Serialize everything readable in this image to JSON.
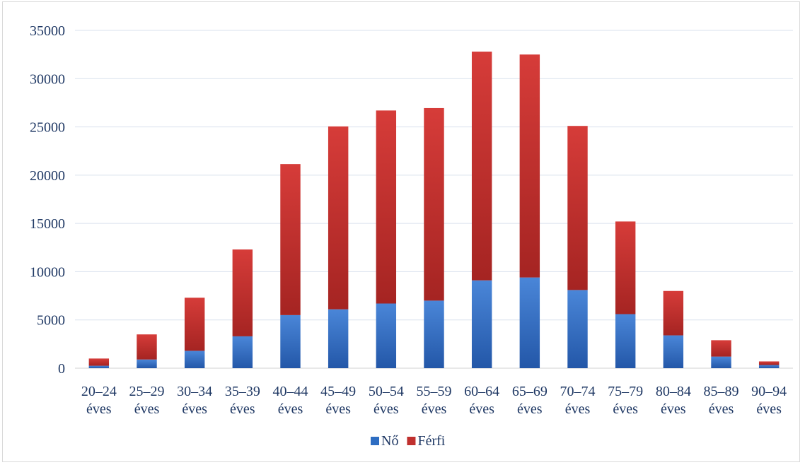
{
  "chart_data": {
    "type": "bar",
    "stacked": true,
    "title": "",
    "xlabel": "",
    "ylabel": "",
    "ylim": [
      0,
      35000
    ],
    "yticks": [
      0,
      5000,
      10000,
      15000,
      20000,
      25000,
      30000,
      35000
    ],
    "grid": true,
    "legend_position": "bottom",
    "categories": [
      [
        "20–24",
        "éves"
      ],
      [
        "25–29",
        "éves"
      ],
      [
        "30–34",
        "éves"
      ],
      [
        "35–39",
        "éves"
      ],
      [
        "40–44",
        "éves"
      ],
      [
        "45–49",
        "éves"
      ],
      [
        "50–54",
        "éves"
      ],
      [
        "55–59",
        "éves"
      ],
      [
        "60–64",
        "éves"
      ],
      [
        "65–69",
        "éves"
      ],
      [
        "70–74",
        "éves"
      ],
      [
        "75–79",
        "éves"
      ],
      [
        "80–84",
        "éves"
      ],
      [
        "85–89",
        "éves"
      ],
      [
        "90–94",
        "éves"
      ]
    ],
    "series": [
      {
        "name": "Nő",
        "color": "#2e6dc2",
        "values": [
          250,
          900,
          1800,
          3300,
          5500,
          6100,
          6700,
          7000,
          9100,
          9400,
          8100,
          5600,
          3400,
          1200,
          330
        ]
      },
      {
        "name": "Férfi",
        "color": "#c0302e",
        "values": [
          750,
          2600,
          5500,
          9000,
          15650,
          18950,
          20000,
          19950,
          23700,
          23100,
          17000,
          9600,
          4600,
          1700,
          370
        ]
      }
    ]
  }
}
